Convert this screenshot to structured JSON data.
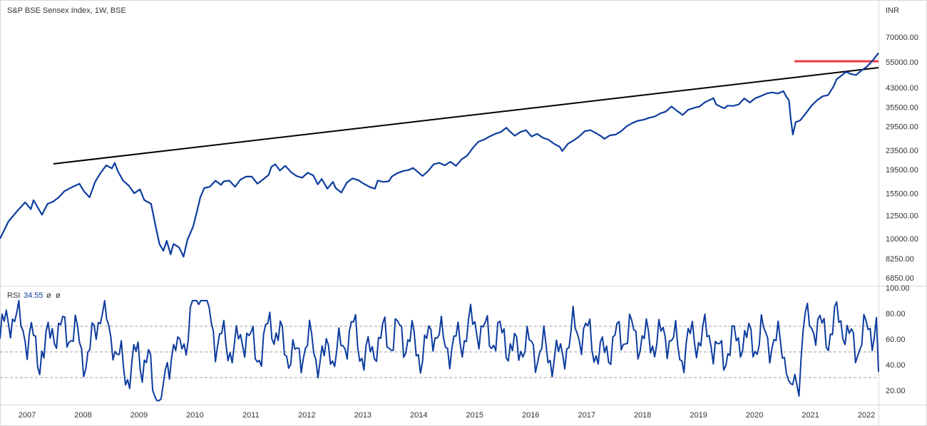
{
  "header": {
    "symbol_title": "S&P BSE Sensex Index, 1W, BSE",
    "currency": "INR"
  },
  "rsi_header": {
    "label": "RSI",
    "value": "34.55",
    "extra1": "ø",
    "extra2": "ø"
  },
  "colors": {
    "price_line": "#0d3c9e",
    "rsi_line": "#0d3c9e",
    "trendline": "#000000",
    "support": "#f23645",
    "grid_dashed": "#9e9e9e",
    "axis_text": "#333333",
    "border": "#d9d9d9"
  },
  "chart_data": [
    {
      "type": "line",
      "title": "S&P BSE Sensex Index, 1W, BSE",
      "ylabel": "INR",
      "yscale": "log",
      "xlim": [
        2007.0,
        2022.7
      ],
      "ylim": [
        6400,
        86000
      ],
      "y_ticks": [
        "70000.00",
        "55000.00",
        "43000.00",
        "35500.00",
        "29500.00",
        "23500.00",
        "19500.00",
        "15500.00",
        "12500.00",
        "10000.00",
        "8250.00",
        "6850.00"
      ],
      "x_ticks": [
        "2007",
        "2008",
        "2009",
        "2010",
        "2011",
        "2012",
        "2013",
        "2014",
        "2015",
        "2016",
        "2017",
        "2018",
        "2019",
        "2020",
        "2021",
        "2022"
      ],
      "series": [
        {
          "values_xy": [
            [
              2007.0,
              10000
            ],
            [
              2007.15,
              11800
            ],
            [
              2007.3,
              13000
            ],
            [
              2007.45,
              14200
            ],
            [
              2007.55,
              13300
            ],
            [
              2007.6,
              14500
            ],
            [
              2007.75,
              12600
            ],
            [
              2007.85,
              14000
            ],
            [
              2007.95,
              14300
            ],
            [
              2008.05,
              14900
            ],
            [
              2008.15,
              15800
            ],
            [
              2008.3,
              16500
            ],
            [
              2008.42,
              17000
            ],
            [
              2008.5,
              15800
            ],
            [
              2008.6,
              14900
            ],
            [
              2008.7,
              17300
            ],
            [
              2008.8,
              18900
            ],
            [
              2008.9,
              20300
            ],
            [
              2009.0,
              19700
            ],
            [
              2009.05,
              20800
            ],
            [
              2009.1,
              19300
            ],
            [
              2009.2,
              17500
            ],
            [
              2009.3,
              16700
            ],
            [
              2009.4,
              15500
            ],
            [
              2009.5,
              16100
            ],
            [
              2009.58,
              14500
            ],
            [
              2009.7,
              14000
            ],
            [
              2009.78,
              11300
            ],
            [
              2009.85,
              9500
            ],
            [
              2009.92,
              8900
            ],
            [
              2009.98,
              9800
            ],
            [
              2010.05,
              8600
            ],
            [
              2010.1,
              9500
            ],
            [
              2010.2,
              9200
            ],
            [
              2010.28,
              8400
            ],
            [
              2010.35,
              9900
            ],
            [
              2010.45,
              11200
            ],
            [
              2010.52,
              13000
            ],
            [
              2010.58,
              14900
            ],
            [
              2010.65,
              16300
            ],
            [
              2010.75,
              16500
            ],
            [
              2010.85,
              17500
            ],
            [
              2010.95,
              16800
            ],
            [
              2011.0,
              17400
            ],
            [
              2011.1,
              17500
            ],
            [
              2011.2,
              16500
            ],
            [
              2011.3,
              17700
            ],
            [
              2011.4,
              18200
            ],
            [
              2011.5,
              18200
            ],
            [
              2011.6,
              17000
            ],
            [
              2011.7,
              17700
            ],
            [
              2011.8,
              18500
            ],
            [
              2011.85,
              20000
            ],
            [
              2011.92,
              20500
            ],
            [
              2012.0,
              19300
            ],
            [
              2012.1,
              20200
            ],
            [
              2012.2,
              19000
            ],
            [
              2012.3,
              18300
            ],
            [
              2012.4,
              18000
            ],
            [
              2012.5,
              18900
            ],
            [
              2012.6,
              18400
            ],
            [
              2012.68,
              16900
            ],
            [
              2012.75,
              17800
            ],
            [
              2012.85,
              16200
            ],
            [
              2012.95,
              17300
            ],
            [
              2013.0,
              16300
            ],
            [
              2013.1,
              15600
            ],
            [
              2013.2,
              17200
            ],
            [
              2013.3,
              17900
            ],
            [
              2013.4,
              17600
            ],
            [
              2013.5,
              17000
            ],
            [
              2013.6,
              16500
            ],
            [
              2013.7,
              16200
            ],
            [
              2013.75,
              17500
            ],
            [
              2013.85,
              17300
            ],
            [
              2013.95,
              17400
            ],
            [
              2014.0,
              18200
            ],
            [
              2014.1,
              18800
            ],
            [
              2014.2,
              19200
            ],
            [
              2014.3,
              19400
            ],
            [
              2014.38,
              19800
            ],
            [
              2014.45,
              19200
            ],
            [
              2014.55,
              18300
            ],
            [
              2014.65,
              19200
            ],
            [
              2014.75,
              20500
            ],
            [
              2014.85,
              20800
            ],
            [
              2014.95,
              20300
            ],
            [
              2015.05,
              21000
            ],
            [
              2015.15,
              20200
            ],
            [
              2015.25,
              21500
            ],
            [
              2015.35,
              22300
            ],
            [
              2015.45,
              24000
            ],
            [
              2015.55,
              25500
            ],
            [
              2015.65,
              26000
            ],
            [
              2015.75,
              26800
            ],
            [
              2015.85,
              27500
            ],
            [
              2015.95,
              28000
            ],
            [
              2016.05,
              29200
            ],
            [
              2016.1,
              28300
            ],
            [
              2016.2,
              27000
            ],
            [
              2016.3,
              28000
            ],
            [
              2016.4,
              28500
            ],
            [
              2016.5,
              26800
            ],
            [
              2016.6,
              27500
            ],
            [
              2016.7,
              26500
            ],
            [
              2016.8,
              26000
            ],
            [
              2016.9,
              25000
            ],
            [
              2017.0,
              24300
            ],
            [
              2017.05,
              23300
            ],
            [
              2017.15,
              25000
            ],
            [
              2017.25,
              25800
            ],
            [
              2017.35,
              26800
            ],
            [
              2017.45,
              28200
            ],
            [
              2017.55,
              28500
            ],
            [
              2017.65,
              27700
            ],
            [
              2017.75,
              26800
            ],
            [
              2017.8,
              26200
            ],
            [
              2017.9,
              27100
            ],
            [
              2018.0,
              27300
            ],
            [
              2018.1,
              28200
            ],
            [
              2018.2,
              29600
            ],
            [
              2018.3,
              30500
            ],
            [
              2018.4,
              31200
            ],
            [
              2018.5,
              31500
            ],
            [
              2018.6,
              32100
            ],
            [
              2018.7,
              32500
            ],
            [
              2018.8,
              33500
            ],
            [
              2018.9,
              34100
            ],
            [
              2019.0,
              35800
            ],
            [
              2019.1,
              34300
            ],
            [
              2019.2,
              33000
            ],
            [
              2019.3,
              34700
            ],
            [
              2019.4,
              35300
            ],
            [
              2019.5,
              35800
            ],
            [
              2019.6,
              37300
            ],
            [
              2019.7,
              38300
            ],
            [
              2019.75,
              38800
            ],
            [
              2019.8,
              36500
            ],
            [
              2019.9,
              35500
            ],
            [
              2019.95,
              35200
            ],
            [
              2020.0,
              36100
            ],
            [
              2020.1,
              36000
            ],
            [
              2020.2,
              36500
            ],
            [
              2020.3,
              38700
            ],
            [
              2020.4,
              37200
            ],
            [
              2020.5,
              38800
            ],
            [
              2020.6,
              39600
            ],
            [
              2020.7,
              40600
            ],
            [
              2020.8,
              41000
            ],
            [
              2020.9,
              40600
            ],
            [
              2021.0,
              41500
            ],
            [
              2021.05,
              39500
            ],
            [
              2021.1,
              38000
            ],
            [
              2021.13,
              32000
            ],
            [
              2021.17,
              27300
            ],
            [
              2021.22,
              30800
            ],
            [
              2021.3,
              31300
            ],
            [
              2021.4,
              33500
            ],
            [
              2021.5,
              36000
            ],
            [
              2021.6,
              38000
            ],
            [
              2021.7,
              39500
            ],
            [
              2021.8,
              40000
            ],
            [
              2021.9,
              43600
            ],
            [
              2022.0,
              47500
            ],
            [
              2021.95,
              46500
            ],
            [
              2022.05,
              48500
            ],
            [
              2022.12,
              50000
            ],
            [
              2022.2,
              49000
            ],
            [
              2022.3,
              48500
            ],
            [
              2022.4,
              50800
            ],
            [
              2022.5,
              52800
            ],
            [
              2022.6,
              56000
            ],
            [
              2022.7,
              60000
            ]
          ]
        }
      ]
    },
    {
      "type": "line",
      "title": "RSI",
      "ylim": [
        10,
        100
      ],
      "y_ticks": [
        "100.00",
        "80.00",
        "60.00",
        "40.00",
        "20.00"
      ],
      "reference_lines": [
        70,
        50,
        30
      ],
      "current_value": 34.55
    }
  ]
}
